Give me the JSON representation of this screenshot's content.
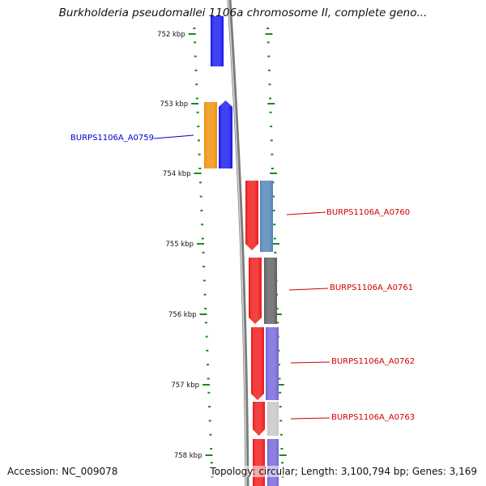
{
  "title": "Burkholderia pseudomallei 1106a chromosome II, complete geno...",
  "footer": {
    "accession": "Accession: NC_009078",
    "topology": "Topology: circular; Length: 3,100,794 bp; Genes: 3,169"
  },
  "axis": {
    "ticks": [
      "752 kbp",
      "753 kbp",
      "754 kbp",
      "755 kbp",
      "756 kbp",
      "757 kbp",
      "758 kbp"
    ]
  },
  "colors": {
    "blue": "#1010ee",
    "orange": "#f08c00",
    "red": "#ee1010",
    "steelblue": "#4a7fb5",
    "darkgray": "#5a5a5a",
    "slateblue": "#6f5fd8",
    "lightgray": "#c4c4c4",
    "backbone": "#8a8a8a",
    "tick_green": "#1a8a1a",
    "label_blue": "#0000cc",
    "label_red": "#cc0000"
  },
  "gene_labels": [
    {
      "text": "BURPS1106A_A0759",
      "color": "label_blue"
    },
    {
      "text": "BURPS1106A_A0760",
      "color": "label_red"
    },
    {
      "text": "BURPS1106A_A0761",
      "color": "label_red"
    },
    {
      "text": "BURPS1106A_A0762",
      "color": "label_red"
    },
    {
      "text": "BURPS1106A_A0763",
      "color": "label_red"
    }
  ]
}
